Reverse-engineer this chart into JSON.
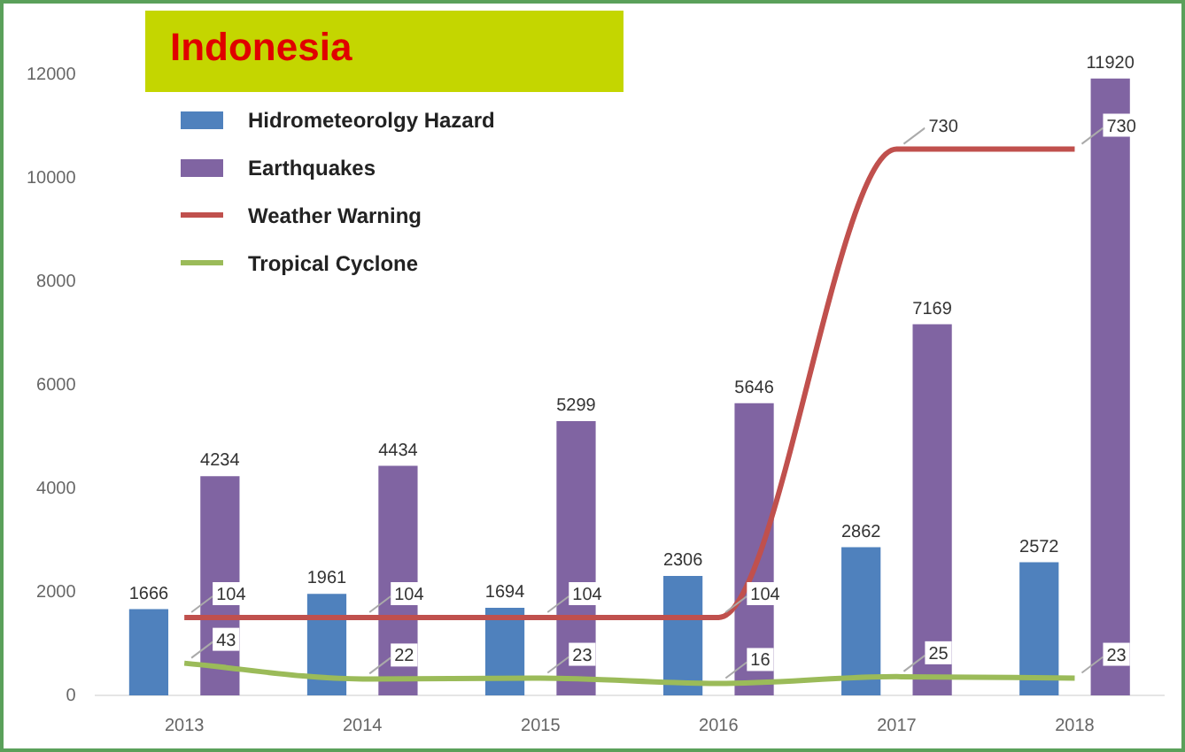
{
  "chart_data": {
    "type": "bar",
    "title": "Indonesia",
    "categories": [
      "2013",
      "2014",
      "2015",
      "2016",
      "2017",
      "2018"
    ],
    "series": [
      {
        "name": "Hidrometeorolgy Hazard",
        "color": "#4f81bd",
        "values": [
          1666,
          1961,
          1694,
          2306,
          2862,
          2572
        ]
      },
      {
        "name": "Earthquakes",
        "color": "#8064a2",
        "values": [
          4234,
          4434,
          5299,
          5646,
          7169,
          11920
        ]
      },
      {
        "name": "Weather Warning",
        "type": "line",
        "axis": "y2",
        "color": "#c0504d",
        "values": [
          104,
          104,
          104,
          104,
          730,
          730
        ]
      },
      {
        "name": "Tropical Cyclone",
        "type": "line",
        "axis": "y2",
        "color": "#9bbb59",
        "values": [
          43,
          22,
          23,
          16,
          25,
          23
        ]
      }
    ],
    "ylim": [
      0,
      12000
    ],
    "yticks": [
      0,
      2000,
      4000,
      6000,
      8000,
      10000,
      12000
    ],
    "y2lim": [
      0,
      830
    ],
    "data_labels": true,
    "legend": "top left",
    "grid": false,
    "marker": "none"
  }
}
